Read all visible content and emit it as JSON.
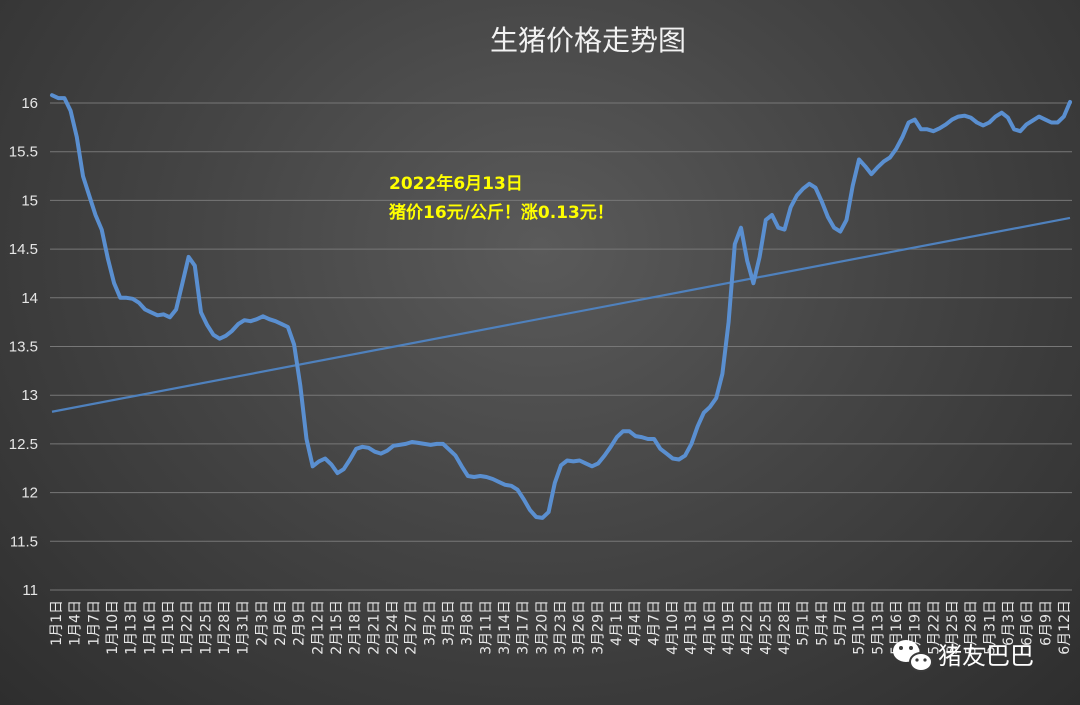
{
  "chart_data": {
    "type": "line",
    "title": "生猪价格走势图",
    "ylim": [
      11,
      16
    ],
    "yticks": [
      11,
      11.5,
      12,
      12.5,
      13,
      13.5,
      14,
      14.5,
      15,
      15.5,
      16
    ],
    "grid": true,
    "x_labels": [
      "1月1日",
      "1月4日",
      "1月7日",
      "1月10日",
      "1月13日",
      "1月16日",
      "1月19日",
      "1月22日",
      "1月25日",
      "1月28日",
      "1月31日",
      "2月3日",
      "2月6日",
      "2月9日",
      "2月12日",
      "2月15日",
      "2月18日",
      "2月21日",
      "2月24日",
      "2月27日",
      "3月2日",
      "3月5日",
      "3月8日",
      "3月11日",
      "3月14日",
      "3月17日",
      "3月20日",
      "3月23日",
      "3月26日",
      "3月29日",
      "4月1日",
      "4月4日",
      "4月7日",
      "4月10日",
      "4月13日",
      "4月16日",
      "4月19日",
      "4月22日",
      "4月25日",
      "4月28日",
      "5月1日",
      "5月4日",
      "5月7日",
      "5月10日",
      "5月13日",
      "5月16日",
      "5月19日",
      "5月22日",
      "5月25日",
      "5月28日",
      "5月31日",
      "6月3日",
      "6月6日",
      "6月9日",
      "6月12日"
    ],
    "series": [
      {
        "color": "#4f81bd",
        "values": [
          16.08,
          16.05,
          16.05,
          15.92,
          15.65,
          15.25,
          15.05,
          14.85,
          14.7,
          14.4,
          14.15,
          14.0,
          14.0,
          13.99,
          13.95,
          13.88,
          13.85,
          13.82,
          13.83,
          13.8,
          13.88,
          14.15,
          14.42,
          14.33,
          13.85,
          13.72,
          13.62,
          13.58,
          13.61,
          13.66,
          13.73,
          13.77,
          13.76,
          13.78,
          13.81,
          13.78,
          13.76,
          13.73,
          13.7,
          13.52,
          13.1,
          12.55,
          12.27,
          12.32,
          12.35,
          12.29,
          12.2,
          12.24,
          12.34,
          12.45,
          12.47,
          12.46,
          12.42,
          12.4,
          12.43,
          12.48,
          12.49,
          12.5,
          12.52,
          12.51,
          12.5,
          12.49,
          12.5,
          12.5,
          12.44,
          12.38,
          12.27,
          12.17,
          12.16,
          12.17,
          12.16,
          12.14,
          12.11,
          12.08,
          12.07,
          12.03,
          11.93,
          11.82,
          11.75,
          11.74,
          11.8,
          12.1,
          12.28,
          12.33,
          12.32,
          12.33,
          12.3,
          12.27,
          12.3,
          12.38,
          12.47,
          12.57,
          12.63,
          12.63,
          12.58,
          12.57,
          12.55,
          12.55,
          12.45,
          12.4,
          12.35,
          12.34,
          12.38,
          12.5,
          12.68,
          12.82,
          12.88,
          12.97,
          13.22,
          13.75,
          14.55,
          14.72,
          14.38,
          14.15,
          14.42,
          14.8,
          14.85,
          14.72,
          14.7,
          14.93,
          15.05,
          15.12,
          15.17,
          15.13,
          14.99,
          14.83,
          14.72,
          14.68,
          14.8,
          15.15,
          15.42,
          15.35,
          15.27,
          15.34,
          15.4,
          15.44,
          15.53,
          15.65,
          15.8,
          15.83,
          15.73,
          15.73,
          15.71,
          15.74,
          15.78,
          15.83,
          15.86,
          15.87,
          15.85,
          15.8,
          15.77,
          15.8,
          15.86,
          15.9,
          15.85,
          15.73,
          15.71,
          15.78,
          15.82,
          15.86,
          15.83,
          15.8,
          15.8,
          15.86,
          16.01
        ]
      },
      {
        "color": "#4f81bd",
        "values": [
          12.83,
          14.82
        ]
      }
    ],
    "annotation": {
      "line1": "2022年6月13日",
      "line2": "猪价16元/公斤！涨0.13元！"
    }
  },
  "watermark": {
    "icon": "wechat-icon",
    "text": "猪友巴巴"
  }
}
